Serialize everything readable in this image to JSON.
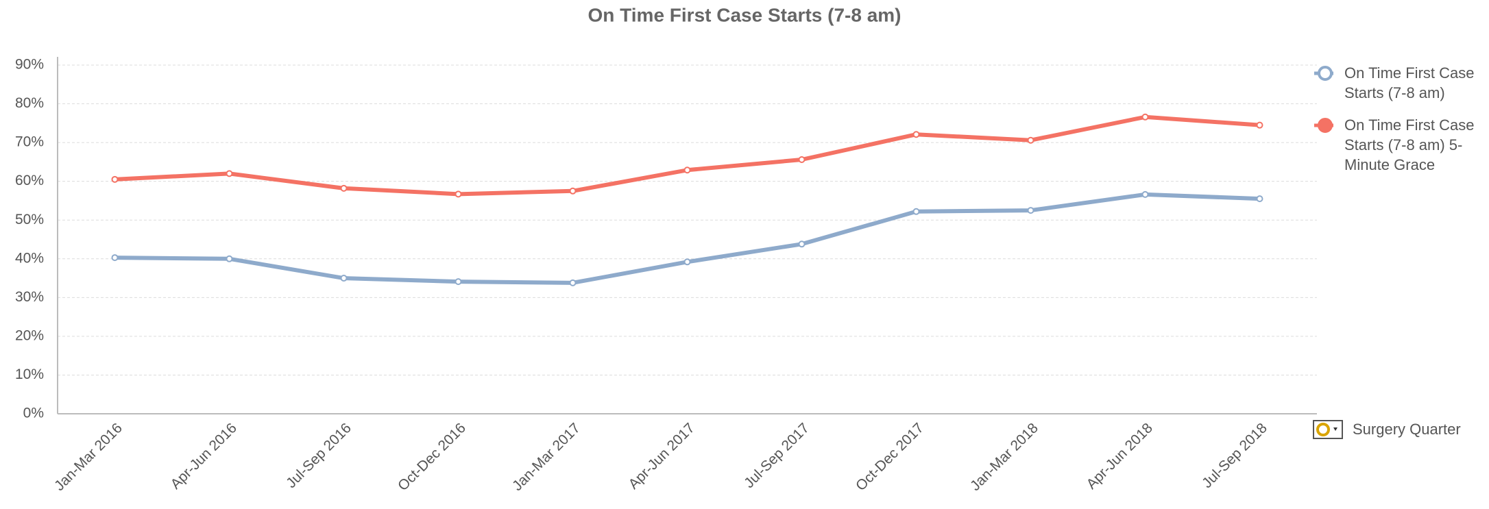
{
  "chart_data": {
    "type": "line",
    "title": "On Time First Case Starts (7-8 am)",
    "x_label": "Surgery Quarter",
    "categories": [
      "Jan-Mar 2016",
      "Apr-Jun 2016",
      "Jul-Sep 2016",
      "Oct-Dec 2016",
      "Jan-Mar 2017",
      "Apr-Jun 2017",
      "Jul-Sep 2017",
      "Oct-Dec 2017",
      "Jan-Mar 2018",
      "Apr-Jun 2018",
      "Jul-Sep 2018"
    ],
    "series": [
      {
        "name": "On Time First Case Starts (7-8 am)",
        "color": "#8eaacb",
        "values": [
          40.3,
          40,
          35,
          34.1,
          33.8,
          39.2,
          43.8,
          52.2,
          52.5,
          56.6,
          55.5
        ]
      },
      {
        "name": "On Time First Case Starts (7-8 am) 5-Minute Grace",
        "color": "#f47264",
        "values": [
          60.5,
          62,
          58.2,
          56.7,
          57.5,
          62.9,
          65.6,
          72.1,
          70.6,
          76.6,
          74.5
        ]
      }
    ],
    "ylim": [
      0,
      90
    ],
    "yticks": [
      {
        "value": 0,
        "label": "0%"
      },
      {
        "value": 10,
        "label": "10%"
      },
      {
        "value": 20,
        "label": "20%"
      },
      {
        "value": 30,
        "label": "30%"
      },
      {
        "value": 40,
        "label": "40%"
      },
      {
        "value": 50,
        "label": "50%"
      },
      {
        "value": 60,
        "label": "60%"
      },
      {
        "value": 70,
        "label": "70%"
      },
      {
        "value": 80,
        "label": "80%"
      },
      {
        "value": 90,
        "label": "90%"
      }
    ],
    "grid": true
  }
}
